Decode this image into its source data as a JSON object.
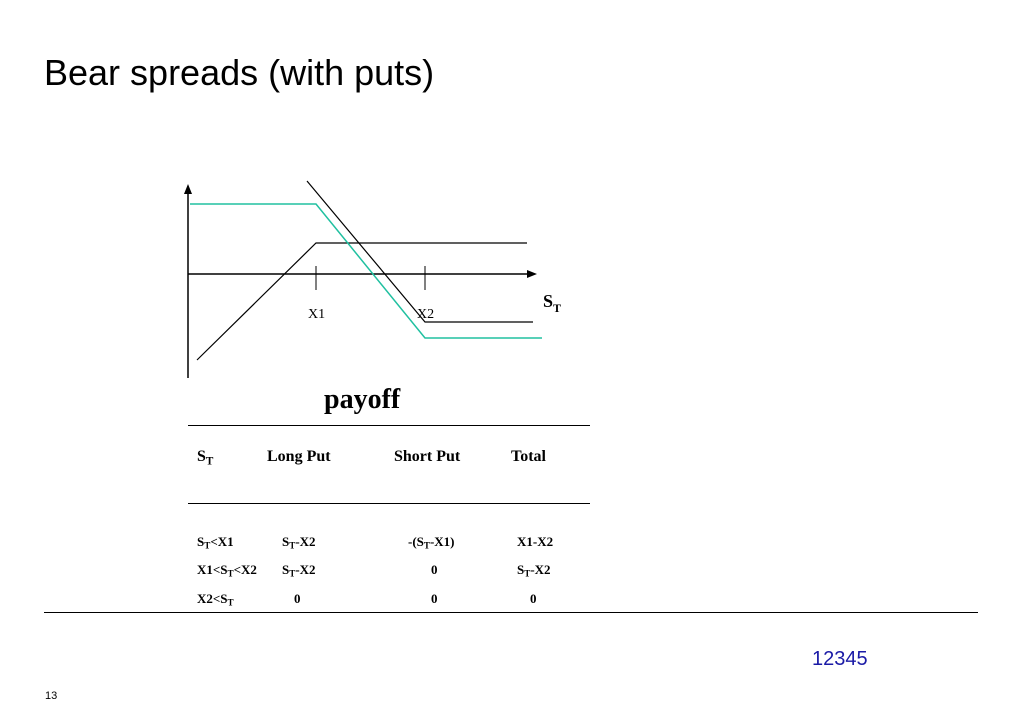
{
  "slide": {
    "title": "Bear spreads (with puts)",
    "page_number": "13",
    "footer_code": "12345",
    "footer_code_color": "#1a1aa6"
  },
  "diagram": {
    "axis_x_label_main": "S",
    "axis_x_label_sub": "T",
    "strike_1_label": "X1",
    "strike_2_label": "X2",
    "colors": {
      "axes": "#000000",
      "payoff_lines": "#000000",
      "total_line": "#20c0a0"
    }
  },
  "table": {
    "caption": "payoff",
    "headers": {
      "st_main": "S",
      "st_sub": "T",
      "long_put": "Long Put",
      "short_put": "Short Put",
      "total": "Total"
    },
    "rows": [
      {
        "st": {
          "a": "S",
          "a_sub": "T",
          "b": "<X1"
        },
        "long_put": {
          "a": "S",
          "a_sub": "T",
          "b": "-X2"
        },
        "short_put": {
          "pre": "-(S",
          "sub": "T",
          "post": "-X1)"
        },
        "total": "X1-X2"
      },
      {
        "st": {
          "a": "X1<S",
          "a_sub": "T",
          "b": "<X2"
        },
        "long_put": {
          "a": "S",
          "a_sub": "T",
          "b": "-X2"
        },
        "short_put": "0",
        "total": {
          "a": "S",
          "a_sub": "T",
          "b": "-X2"
        }
      },
      {
        "st": {
          "a": "X2<S",
          "a_sub": "T"
        },
        "long_put": "0",
        "short_put": "0",
        "total": "0"
      }
    ]
  }
}
